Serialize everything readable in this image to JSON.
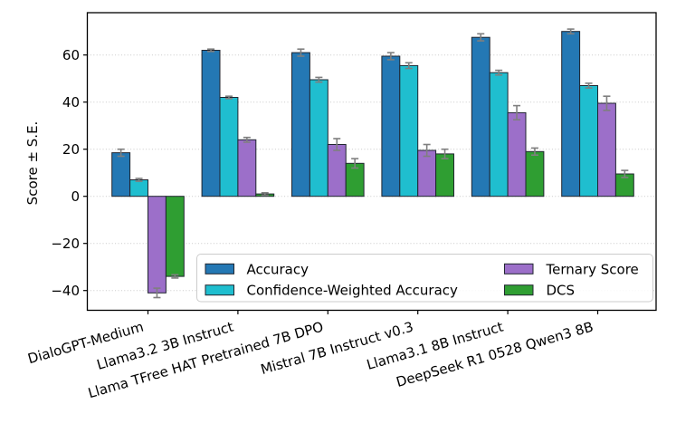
{
  "figure": {
    "background": "#ffffff",
    "plot_border_color": "#000000",
    "grid_color": "#c9c9c9",
    "error_bar_color": "#7f7f7f",
    "bar_edge_color": "#20252f"
  },
  "chart_data": {
    "type": "bar",
    "title": "",
    "xlabel": "",
    "ylabel": "Score ± S.E.",
    "categories": [
      "DialoGPT-Medium",
      "Llama3.2 3B Instruct",
      "Llama TFree HAT Pretrained 7B DPO",
      "Mistral 7B Instruct v0.3",
      "Llama3.1 8B Instruct",
      "DeepSeek R1 0528 Qwen3 8B"
    ],
    "series": [
      {
        "name": "Accuracy",
        "color": "#2478b4",
        "values": [
          18.5,
          62,
          61,
          59.5,
          67.5,
          70
        ],
        "errors": [
          1.5,
          0.5,
          1.5,
          1.5,
          1.5,
          1
        ]
      },
      {
        "name": "Confidence-Weighted Accuracy",
        "color": "#1fbecf",
        "values": [
          7,
          42,
          49.5,
          55.5,
          52.5,
          47
        ],
        "errors": [
          0.6,
          0.5,
          1,
          1.2,
          1,
          1
        ]
      },
      {
        "name": "Ternary Score",
        "color": "#9c6fc9",
        "values": [
          -41,
          24,
          22,
          19.5,
          35.5,
          39.5
        ],
        "errors": [
          2,
          1,
          2.5,
          2.5,
          3,
          3
        ]
      },
      {
        "name": "DCS",
        "color": "#2f9e32",
        "values": [
          -34,
          1,
          14,
          18,
          19,
          9.5
        ],
        "errors": [
          0.7,
          0.5,
          2,
          2,
          1.5,
          1.5
        ]
      }
    ],
    "yticks": [
      60,
      40,
      20,
      0,
      -20,
      -40
    ],
    "ytick_labels": [
      "60",
      "40",
      "20",
      "0",
      "−20",
      "−40"
    ],
    "ylim": [
      -48.4,
      78
    ],
    "grid": "horizontal dotted",
    "legend_position": "lower center-right, 2 columns",
    "error_bars": true,
    "xtick_label_rotation_deg": 16
  }
}
